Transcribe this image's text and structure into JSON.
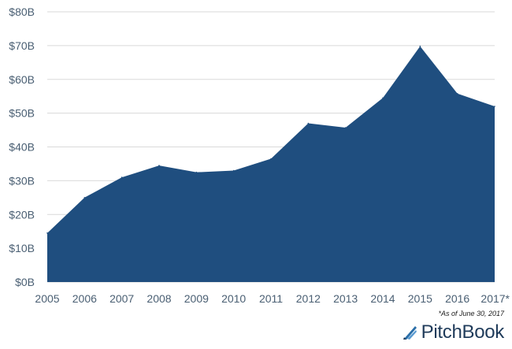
{
  "chart_data": {
    "type": "area",
    "categories": [
      "2005",
      "2006",
      "2007",
      "2008",
      "2009",
      "2010",
      "2011",
      "2012",
      "2013",
      "2014",
      "2015",
      "2016",
      "2017*"
    ],
    "values": [
      14.5,
      25,
      31,
      34.5,
      32.5,
      33,
      36.5,
      47,
      45.7,
      54.5,
      69.8,
      55.8,
      52
    ],
    "y_tick_labels": [
      "$0B",
      "$10B",
      "$20B",
      "$30B",
      "$40B",
      "$50B",
      "$60B",
      "$70B",
      "$80B"
    ],
    "ylim": [
      0,
      80
    ],
    "y_step": 10,
    "grid": true,
    "legend": "none",
    "fill_color": "#1f4e7f",
    "grid_color": "#d9d9d9",
    "tick_color": "#4a5f73"
  },
  "footnote": "*As of June 30, 2017",
  "brand": {
    "name": "PitchBook",
    "icon": "pitchbook-logo-icon"
  }
}
